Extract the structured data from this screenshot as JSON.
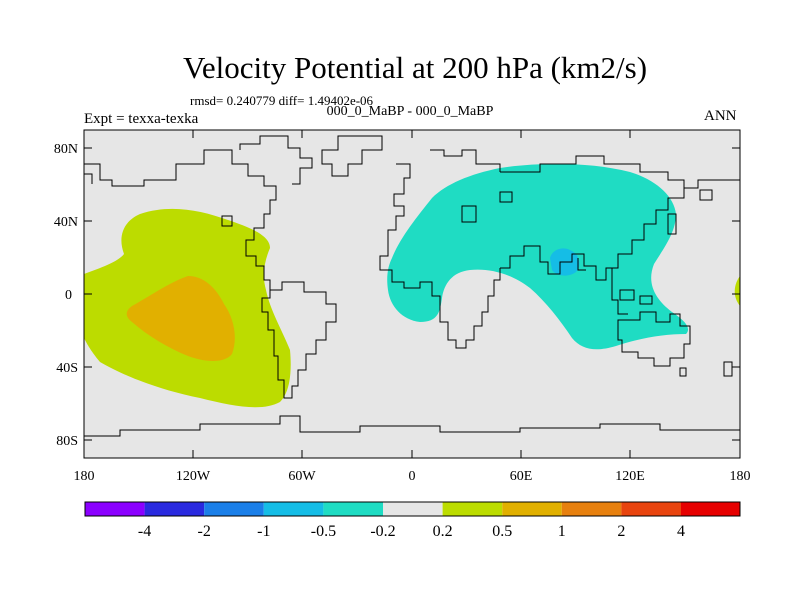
{
  "title": "Velocity Potential at 200 hPa (km2/s)",
  "stats": "rmsd= 0.240779 diff= 1.49402e-06",
  "subtitle": "000_0_MaBP - 000_0_MaBP",
  "expt": "Expt = texxa-texka",
  "season": "ANN",
  "map": {
    "lat_ticks": [
      "80N",
      "40N",
      "0",
      "40S",
      "80S"
    ],
    "lon_ticks": [
      "180",
      "120W",
      "60W",
      "0",
      "60E",
      "120E",
      "180"
    ],
    "background_color": "#e6e6e6"
  },
  "colorbar": {
    "colors": [
      "#8b00ff",
      "#2a2adf",
      "#1b7fe8",
      "#15bde6",
      "#1fdcc3",
      "#e6e6e6",
      "#bcdc00",
      "#e1b000",
      "#e7800e",
      "#e8440e",
      "#e60000"
    ],
    "labels": [
      "-4",
      "-2",
      "-1",
      "-0.5",
      "-0.2",
      "0.2",
      "0.5",
      "1",
      "2",
      "4"
    ]
  },
  "regions": [
    {
      "name": "positive-pacific",
      "level": "0.2 to 0.5",
      "color": "#bcdc00"
    },
    {
      "name": "positive-pacific-core",
      "level": "0.5 to 1",
      "color": "#e1b000"
    },
    {
      "name": "negative-indo-asia",
      "level": "-0.5 to -0.2",
      "color": "#1fdcc3"
    },
    {
      "name": "negative-tibet-core",
      "level": "-1 to -0.5",
      "color": "#15bde6"
    }
  ]
}
